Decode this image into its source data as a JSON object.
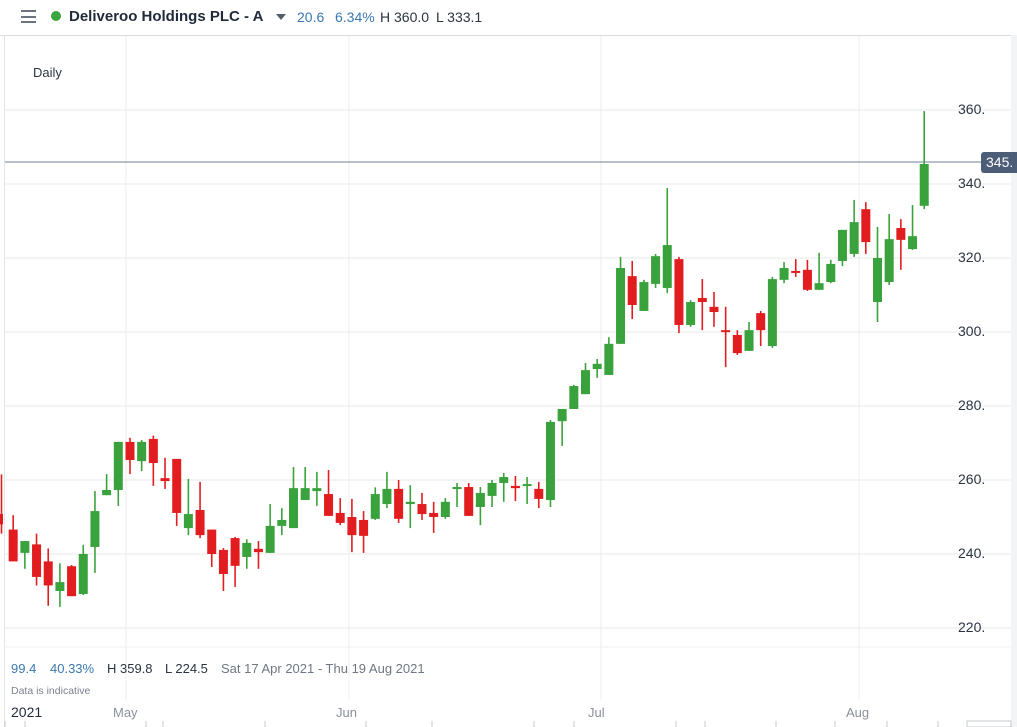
{
  "header": {
    "menu_icon": "hamburger-menu-icon",
    "status_color": "#3aa63f",
    "instrument": "Deliveroo Holdings PLC - A",
    "change": "20.6",
    "change_pct": "6.34%",
    "high": "H 360.0",
    "low": "L 333.1"
  },
  "period_label": "Daily",
  "current_price_tag": "345.",
  "summary": {
    "change": "99.4",
    "change_pct": "40.33%",
    "high": "H 359.8",
    "low": "L 224.5",
    "range": "Sat 17 Apr 2021 - Thu 19 Aug 2021",
    "note": "Data is indicative"
  },
  "x_axis": {
    "year": "2021",
    "months": [
      {
        "label": "May",
        "x": 126
      },
      {
        "label": "Jun",
        "x": 349
      },
      {
        "label": "Jul",
        "x": 601
      },
      {
        "label": "Aug",
        "x": 859
      }
    ]
  },
  "colors": {
    "up": "#3aa23c",
    "down": "#e11d20",
    "grid": "#e8eaed",
    "price_line": "#8e99ab"
  },
  "chart_data": {
    "type": "candlestick",
    "title": "Deliveroo Holdings PLC - A",
    "subtitle": "Daily",
    "xlabel": "",
    "ylabel": "",
    "ylim": [
      212,
      377
    ],
    "y_ticks": [
      220,
      240,
      260,
      280,
      300,
      320,
      340,
      360
    ],
    "y_tick_labels": [
      "220.",
      "240.",
      "260.",
      "280.",
      "300.",
      "320.",
      "340.",
      "360."
    ],
    "x_tick_labels": [
      "2021",
      "May",
      "Jun",
      "Jul",
      "Aug"
    ],
    "grid": true,
    "current_price": 345,
    "date_range": "Sat 17 Apr 2021 - Thu 19 Aug 2021",
    "candles": [
      {
        "o": 250.8,
        "h": 261.5,
        "l": 245.5,
        "c": 248.0
      },
      {
        "o": 246.6,
        "h": 250.5,
        "l": 238.6,
        "c": 238.0
      },
      {
        "o": 240.3,
        "h": 240.0,
        "l": 236.0,
        "c": 243.5
      },
      {
        "o": 242.6,
        "h": 245.5,
        "l": 231.5,
        "c": 233.8
      },
      {
        "o": 238.0,
        "h": 241.5,
        "l": 226.0,
        "c": 231.5
      },
      {
        "o": 230.0,
        "h": 237.5,
        "l": 225.7,
        "c": 232.4
      },
      {
        "o": 236.7,
        "h": 237.0,
        "l": 231.4,
        "c": 228.6
      },
      {
        "o": 229.2,
        "h": 242.5,
        "l": 228.9,
        "c": 240.0
      },
      {
        "o": 241.9,
        "h": 257.0,
        "l": 234.9,
        "c": 251.6
      },
      {
        "o": 255.9,
        "h": 261.6,
        "l": 257.6,
        "c": 257.3
      },
      {
        "o": 257.3,
        "h": 266.5,
        "l": 253.0,
        "c": 270.3
      },
      {
        "o": 270.3,
        "h": 271.4,
        "l": 261.6,
        "c": 265.4
      },
      {
        "o": 265.1,
        "h": 270.8,
        "l": 262.4,
        "c": 270.3
      },
      {
        "o": 271.1,
        "h": 272.0,
        "l": 258.4,
        "c": 264.6
      },
      {
        "o": 260.5,
        "h": 266.0,
        "l": 257.6,
        "c": 259.7
      },
      {
        "o": 265.7,
        "h": 264.6,
        "l": 247.6,
        "c": 251.1
      },
      {
        "o": 247.0,
        "h": 260.3,
        "l": 245.1,
        "c": 250.8
      },
      {
        "o": 251.9,
        "h": 259.5,
        "l": 244.3,
        "c": 245.1
      },
      {
        "o": 246.6,
        "h": 246.6,
        "l": 236.5,
        "c": 240.0
      },
      {
        "o": 241.1,
        "h": 241.6,
        "l": 230.0,
        "c": 234.6
      },
      {
        "o": 244.3,
        "h": 244.6,
        "l": 231.1,
        "c": 236.8
      },
      {
        "o": 239.2,
        "h": 244.0,
        "l": 236.0,
        "c": 243.0
      },
      {
        "o": 241.4,
        "h": 243.5,
        "l": 236.0,
        "c": 240.5
      },
      {
        "o": 240.3,
        "h": 253.5,
        "l": 240.3,
        "c": 247.6
      },
      {
        "o": 247.6,
        "h": 252.4,
        "l": 245.1,
        "c": 249.2
      },
      {
        "o": 247.0,
        "h": 263.5,
        "l": 247.0,
        "c": 257.8
      },
      {
        "o": 254.6,
        "h": 263.5,
        "l": 254.6,
        "c": 257.8
      },
      {
        "o": 257.0,
        "h": 262.2,
        "l": 253.0,
        "c": 257.8
      },
      {
        "o": 256.2,
        "h": 262.7,
        "l": 250.3,
        "c": 250.3
      },
      {
        "o": 251.1,
        "h": 255.1,
        "l": 247.8,
        "c": 248.4
      },
      {
        "o": 250.0,
        "h": 254.9,
        "l": 240.5,
        "c": 245.1
      },
      {
        "o": 249.2,
        "h": 251.6,
        "l": 240.3,
        "c": 244.9
      },
      {
        "o": 249.5,
        "h": 258.0,
        "l": 249.2,
        "c": 256.2
      },
      {
        "o": 253.5,
        "h": 262.2,
        "l": 252.4,
        "c": 257.6
      },
      {
        "o": 257.6,
        "h": 260.0,
        "l": 248.4,
        "c": 249.5
      },
      {
        "o": 253.5,
        "h": 258.6,
        "l": 247.0,
        "c": 254.1
      },
      {
        "o": 253.5,
        "h": 256.5,
        "l": 249.2,
        "c": 250.8
      },
      {
        "o": 251.1,
        "h": 254.1,
        "l": 245.7,
        "c": 250.0
      },
      {
        "o": 250.0,
        "h": 255.1,
        "l": 249.5,
        "c": 254.1
      },
      {
        "o": 257.8,
        "h": 259.2,
        "l": 252.7,
        "c": 258.1
      },
      {
        "o": 258.1,
        "h": 259.2,
        "l": 250.3,
        "c": 250.3
      },
      {
        "o": 252.7,
        "h": 258.1,
        "l": 247.8,
        "c": 256.5
      },
      {
        "o": 255.7,
        "h": 260.0,
        "l": 252.7,
        "c": 259.2
      },
      {
        "o": 259.2,
        "h": 261.9,
        "l": 254.1,
        "c": 260.8
      },
      {
        "o": 258.4,
        "h": 261.1,
        "l": 254.3,
        "c": 257.8
      },
      {
        "o": 258.6,
        "h": 260.8,
        "l": 253.5,
        "c": 258.9
      },
      {
        "o": 257.6,
        "h": 259.5,
        "l": 252.4,
        "c": 254.9
      },
      {
        "o": 254.6,
        "h": 276.2,
        "l": 252.7,
        "c": 275.7
      },
      {
        "o": 275.9,
        "h": 279.2,
        "l": 269.2,
        "c": 279.2
      },
      {
        "o": 279.2,
        "h": 285.7,
        "l": 279.2,
        "c": 285.4
      },
      {
        "o": 283.2,
        "h": 291.6,
        "l": 283.2,
        "c": 289.7
      },
      {
        "o": 290.0,
        "h": 292.7,
        "l": 287.6,
        "c": 291.4
      },
      {
        "o": 288.4,
        "h": 298.6,
        "l": 288.4,
        "c": 296.8
      },
      {
        "o": 296.8,
        "h": 320.3,
        "l": 296.8,
        "c": 317.3
      },
      {
        "o": 315.1,
        "h": 319.2,
        "l": 303.5,
        "c": 307.3
      },
      {
        "o": 305.7,
        "h": 314.1,
        "l": 305.7,
        "c": 313.5
      },
      {
        "o": 313.0,
        "h": 321.1,
        "l": 311.9,
        "c": 320.5
      },
      {
        "o": 311.9,
        "h": 338.9,
        "l": 310.5,
        "c": 323.5
      },
      {
        "o": 319.7,
        "h": 320.3,
        "l": 299.7,
        "c": 301.9
      },
      {
        "o": 301.9,
        "h": 308.6,
        "l": 301.4,
        "c": 308.1
      },
      {
        "o": 309.2,
        "h": 314.3,
        "l": 300.5,
        "c": 308.1
      },
      {
        "o": 306.8,
        "h": 310.8,
        "l": 301.4,
        "c": 305.4
      },
      {
        "o": 300.5,
        "h": 306.8,
        "l": 290.5,
        "c": 300.0
      },
      {
        "o": 299.2,
        "h": 300.5,
        "l": 293.8,
        "c": 294.3
      },
      {
        "o": 294.9,
        "h": 302.7,
        "l": 294.9,
        "c": 300.5
      },
      {
        "o": 305.1,
        "h": 305.7,
        "l": 296.2,
        "c": 300.5
      },
      {
        "o": 296.2,
        "h": 314.9,
        "l": 295.7,
        "c": 314.3
      },
      {
        "o": 314.1,
        "h": 318.9,
        "l": 313.2,
        "c": 317.3
      },
      {
        "o": 316.5,
        "h": 319.7,
        "l": 314.9,
        "c": 316.0
      },
      {
        "o": 316.8,
        "h": 319.5,
        "l": 311.1,
        "c": 311.4
      },
      {
        "o": 311.4,
        "h": 321.4,
        "l": 311.4,
        "c": 313.2
      },
      {
        "o": 313.5,
        "h": 319.5,
        "l": 313.2,
        "c": 318.4
      },
      {
        "o": 319.2,
        "h": 327.6,
        "l": 317.8,
        "c": 327.6
      },
      {
        "o": 321.1,
        "h": 335.7,
        "l": 320.3,
        "c": 329.7
      },
      {
        "o": 333.2,
        "h": 335.1,
        "l": 321.1,
        "c": 324.3
      },
      {
        "o": 308.1,
        "h": 328.4,
        "l": 302.7,
        "c": 320.0
      },
      {
        "o": 313.5,
        "h": 331.9,
        "l": 312.7,
        "c": 325.1
      },
      {
        "o": 328.1,
        "h": 330.5,
        "l": 316.8,
        "c": 324.9
      },
      {
        "o": 322.4,
        "h": 334.3,
        "l": 322.2,
        "c": 325.9
      },
      {
        "o": 334.1,
        "h": 359.7,
        "l": 333.2,
        "c": 345.4
      }
    ]
  }
}
